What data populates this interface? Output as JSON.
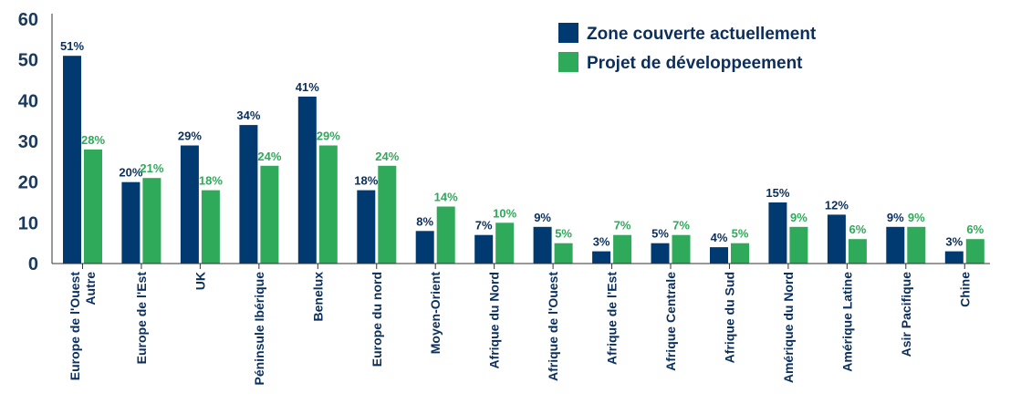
{
  "chart_data": {
    "type": "bar",
    "categories": [
      [
        "Europe de l'Ouest",
        "Autre"
      ],
      [
        "Europe de l'Est"
      ],
      [
        "UK"
      ],
      [
        "Péninsule Ibérique"
      ],
      [
        "Benelux"
      ],
      [
        "Europe du nord"
      ],
      [
        "Moyen-Orient"
      ],
      [
        "Afrique du Nord"
      ],
      [
        "Afrique de l'Ouest"
      ],
      [
        "Afrique de l'Est"
      ],
      [
        "Afrique Centrale"
      ],
      [
        "Afrique du Sud"
      ],
      [
        "Amérique du Nord"
      ],
      [
        "Amérique Latine"
      ],
      [
        "Asir Pacifique"
      ],
      [
        "Chine"
      ]
    ],
    "series": [
      {
        "name": "Zone couverte actuellement",
        "color": "#003a70",
        "label_color": "#0b2f5c",
        "values": [
          51,
          20,
          29,
          34,
          41,
          18,
          8,
          7,
          9,
          3,
          5,
          4,
          15,
          12,
          9,
          3
        ],
        "labels": [
          "51%",
          "20%",
          "29%",
          "34%",
          "41%",
          "18%",
          "8%",
          "7%",
          "9%",
          "3%",
          "5%",
          "4%",
          "15%",
          "12%",
          "9%",
          "3%"
        ]
      },
      {
        "name": "Projet de développeement",
        "color": "#2eaa5a",
        "label_color": "#2eaa5a",
        "values": [
          28,
          21,
          18,
          24,
          29,
          24,
          14,
          10,
          5,
          7,
          7,
          5,
          9,
          6,
          9,
          6
        ],
        "labels": [
          "28%",
          "21%",
          "18%",
          "24%",
          "29%",
          "24%",
          "14%",
          "10%",
          "5%",
          "7%",
          "7%",
          "5%",
          "9%",
          "6%",
          "9%",
          "6%"
        ]
      }
    ],
    "yticks": [
      0,
      10,
      20,
      30,
      40,
      50,
      60
    ],
    "ylim": [
      0,
      60
    ],
    "grid": false,
    "legend_position": "top-right"
  }
}
